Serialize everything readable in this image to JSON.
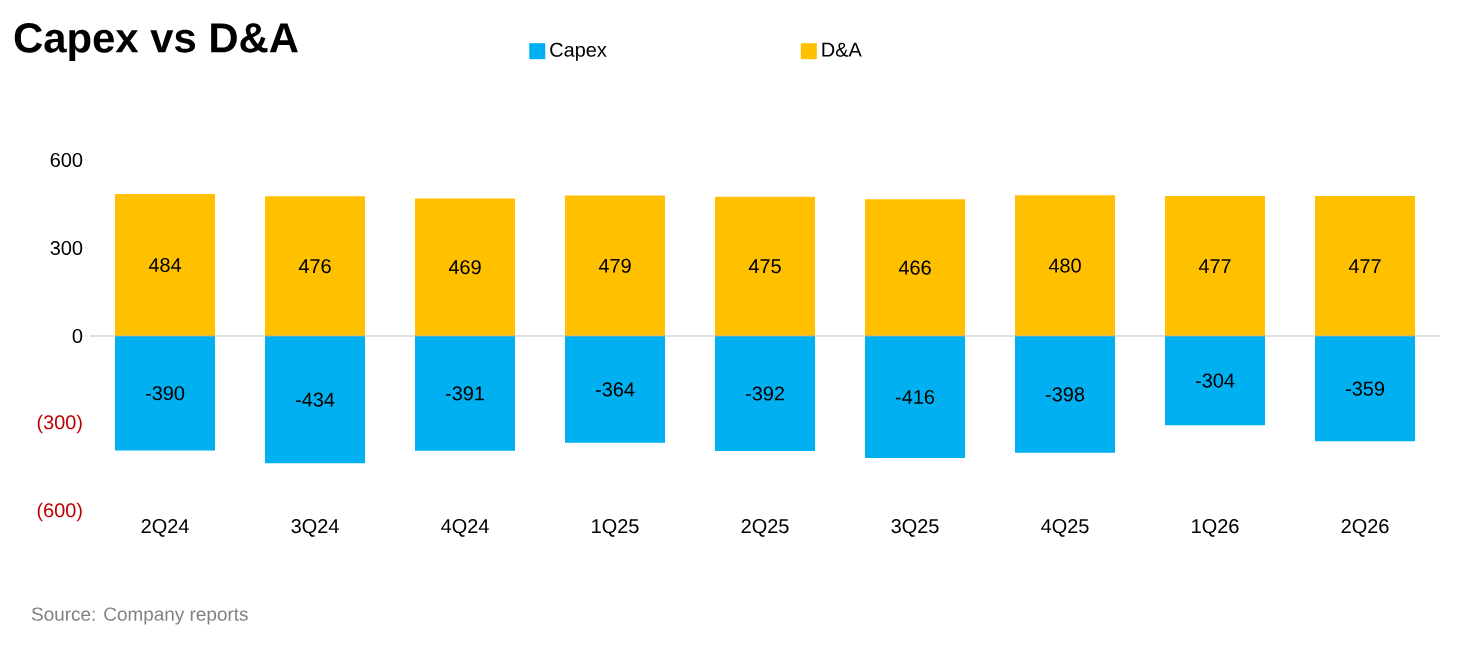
{
  "chart_data": {
    "type": "bar",
    "title": "Capex vs D&A",
    "categories": [
      "2Q24",
      "3Q24",
      "4Q24",
      "1Q25",
      "2Q25",
      "3Q25",
      "4Q25",
      "1Q26",
      "2Q26"
    ],
    "series": [
      {
        "name": "Capex",
        "color": "#00b0f0",
        "values": [
          -390,
          -434,
          -391,
          -364,
          -392,
          -416,
          -398,
          -304,
          -359
        ]
      },
      {
        "name": "D&A",
        "color": "#ffc000",
        "values": [
          484,
          476,
          469,
          479,
          475,
          466,
          480,
          477,
          477
        ]
      }
    ],
    "stacked": true,
    "data_labels": true,
    "legend": "top",
    "ylim": [
      -600,
      600
    ],
    "yticks": [
      {
        "value": -600,
        "label": "(600)"
      },
      {
        "value": -300,
        "label": "(300)"
      },
      0,
      300,
      600
    ],
    "annotations": [
      "Source: Company reports"
    ]
  }
}
